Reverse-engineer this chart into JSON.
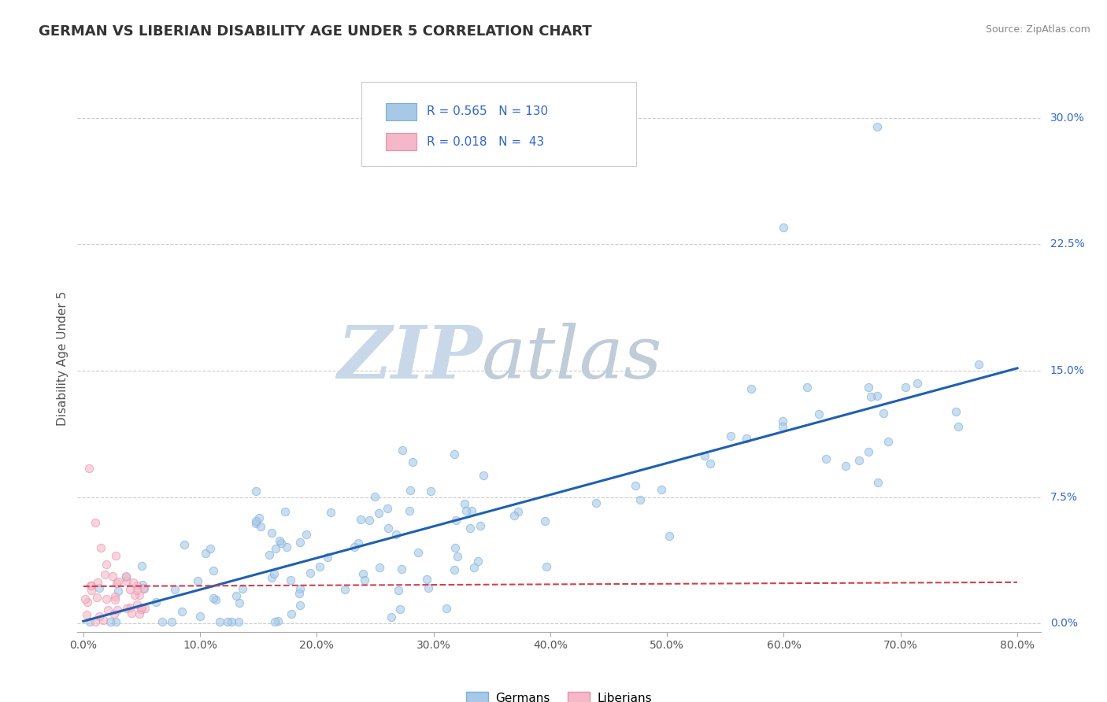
{
  "title": "GERMAN VS LIBERIAN DISABILITY AGE UNDER 5 CORRELATION CHART",
  "source_text": "Source: ZipAtlas.com",
  "ylabel": "Disability Age Under 5",
  "xlabel": "",
  "xlim": [
    -0.005,
    0.82
  ],
  "ylim": [
    -0.005,
    0.32
  ],
  "x_ticks": [
    0.0,
    0.1,
    0.2,
    0.3,
    0.4,
    0.5,
    0.6,
    0.7,
    0.8
  ],
  "x_tick_labels": [
    "0.0%",
    "10.0%",
    "20.0%",
    "30.0%",
    "40.0%",
    "50.0%",
    "60.0%",
    "70.0%",
    "80.0%"
  ],
  "y_ticks_right": [
    0.0,
    0.075,
    0.15,
    0.225,
    0.3
  ],
  "y_tick_labels_right": [
    "0.0%",
    "7.5%",
    "15.0%",
    "22.5%",
    "30.0%"
  ],
  "german_color": "#a8c8e8",
  "german_edge_color": "#7bafd4",
  "liberian_color": "#f4b8c8",
  "liberian_edge_color": "#e890a8",
  "german_line_color": "#2060b0",
  "liberian_line_color": "#d04050",
  "german_R": 0.565,
  "german_N": 130,
  "liberian_R": 0.018,
  "liberian_N": 43,
  "background_color": "#ffffff",
  "grid_color": "#cccccc",
  "watermark_ZIP": "ZIP",
  "watermark_atlas": "atlas",
  "watermark_color_ZIP": "#c8d8e8",
  "watermark_color_atlas": "#c0ccd8",
  "title_fontsize": 13,
  "axis_fontsize": 11,
  "tick_fontsize": 10,
  "legend_fontsize": 11,
  "scatter_size": 55,
  "scatter_alpha": 0.6,
  "scatter_linewidth": 0.8
}
